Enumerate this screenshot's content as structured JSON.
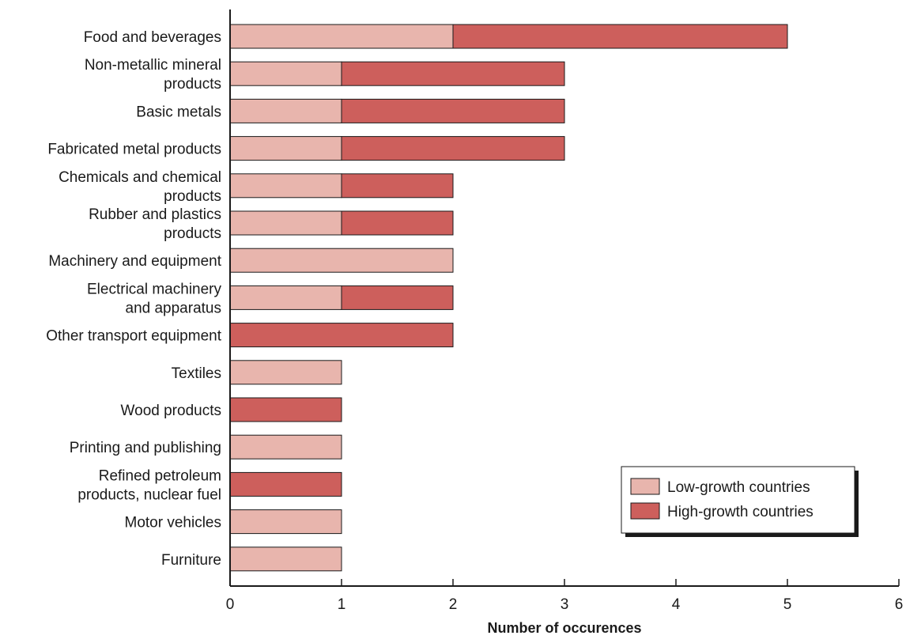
{
  "chart_data": {
    "type": "bar",
    "orientation": "horizontal",
    "stacked": true,
    "xlabel": "Number of occurences",
    "ylabel": "",
    "xlim": [
      0,
      6
    ],
    "xticks": [
      0,
      1,
      2,
      3,
      4,
      5,
      6
    ],
    "grid": false,
    "legend_position": "bottom-right",
    "categories": [
      [
        "Food and beverages"
      ],
      [
        "Non-metallic mineral",
        "products"
      ],
      [
        "Basic metals"
      ],
      [
        "Fabricated metal products"
      ],
      [
        "Chemicals and chemical",
        "products"
      ],
      [
        "Rubber and plastics",
        "products"
      ],
      [
        "Machinery and equipment"
      ],
      [
        "Electrical machinery",
        "and apparatus"
      ],
      [
        "Other transport equipment"
      ],
      [
        "Textiles"
      ],
      [
        "Wood products"
      ],
      [
        "Printing and publishing"
      ],
      [
        "Refined petroleum",
        "products, nuclear fuel"
      ],
      [
        "Motor vehicles"
      ],
      [
        "Furniture"
      ]
    ],
    "series": [
      {
        "name": "Low-growth countries",
        "color": "#e8b5ad",
        "values": [
          2,
          1,
          1,
          1,
          1,
          1,
          2,
          1,
          0,
          1,
          0,
          1,
          0,
          1,
          1
        ]
      },
      {
        "name": "High-growth countries",
        "color": "#cd5f5c",
        "values": [
          3,
          2,
          2,
          2,
          1,
          1,
          0,
          1,
          2,
          0,
          1,
          0,
          1,
          0,
          0
        ]
      }
    ]
  }
}
